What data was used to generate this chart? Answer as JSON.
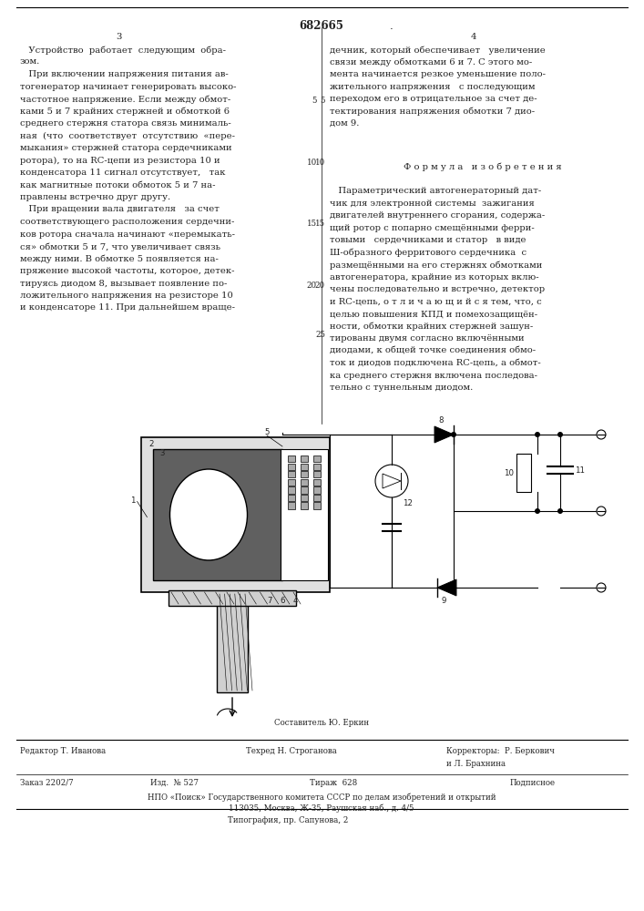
{
  "patent_number": "682665",
  "page_col_left": "3",
  "page_col_right": "4",
  "col_left_text": [
    "   Устройство  работает  следующим  обра-",
    "зом.",
    "   При включении напряжения питания ав-",
    "тогенератор начинает генерировать высоко-",
    "частотное напряжение. Если между обмот-",
    "ками 5 и 7 крайних стержней и обмоткой 6",
    "среднего стержня статора связь минималь-",
    "ная  (что  соответствует  отсутствию  «пере-",
    "мыкания» стержней статора сердечниками",
    "ротора), то на RC-цепи из резистора 10 и",
    "конденсатора 11 сигнал отсутствует,   так",
    "как магнитные потоки обмоток 5 и 7 на-",
    "правлены встречно друг другу.",
    "   При вращении вала двигателя   за счет",
    "соответствующего расположения сердечни-",
    "ков ротора сначала начинают «перемыкать-",
    "ся» обмотки 5 и 7, что увеличивает связь",
    "между ними. В обмотке 5 появляется на-",
    "пряжение высокой частоты, которое, детек-",
    "тируясь диодом 8, вызывает появление по-",
    "ложительного напряжения на резисторе 10",
    "и конденсаторе 11. При дальнейшем враще-"
  ],
  "col_right_text_top": [
    "дечник, который обеспечивает   увеличение",
    "связи между обмотками 6 и 7. С этого мо-",
    "мента начинается резкое уменьшение поло-",
    "жительного напряжения   с последующим",
    "переходом его в отрицательное за счет де-",
    "тектирования напряжения обмотки 7 дио-",
    "дом 9."
  ],
  "formula_title": "Ф о р м у л а   и з о б р е т е н и я",
  "formula_text": [
    "   Параметрический автогенераторный дат-",
    "чик для электронной системы  зажигания",
    "двигателей внутреннего сгорания, содержа-",
    "щий ротор с попарно смещёнными ферри-",
    "товыми   сердечниками и статор   в виде",
    "Ш-образного ферритового сердечника  с",
    "размещёнными на его стержнях обмотками",
    "автогенератора, крайние из которых вклю-",
    "чены последовательно и встречно, детектор",
    "и RC-цепь, о т л и ч а ю щ и й с я тем, что, с",
    "целью повышения КПД и помехозащищён-",
    "ности, обмотки крайних стержней зашун-",
    "тированы двумя согласно включёнными",
    "диодами, к общей точке соединения обмо-",
    "ток и диодов подключена RC-цепь, а обмот-",
    "ка среднего стержня включена последова-",
    "тельно с туннельным диодом."
  ],
  "composer_line": "Составитель Ю. Еркин",
  "editor_line": "Редактор Т. Иванова",
  "tech_line": "Техред Н. Строганова",
  "corrector_line": "Корректоры:  Р. Беркович",
  "corrector_line2": "и Л. Брахнина",
  "order_line": "Заказ 2202/7",
  "izdanie_line": "Изд.  № 527",
  "tirazh_line": "Тираж  628",
  "podpisnoe_line": "Подписное",
  "npo_line": "НПО «Поиск» Государственного комитета СССР по делам изобретений и открытий",
  "address_line": "113035, Москва, Ж-35, Раушская наб., д. 4/5",
  "tipography_line": "Типография, пр. Сапунова, 2",
  "bg_color": "#ffffff",
  "text_color": "#222222"
}
